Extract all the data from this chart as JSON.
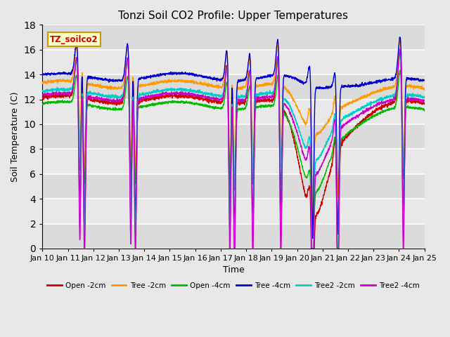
{
  "title": "Tonzi Soil CO2 Profile: Upper Temperatures",
  "xlabel": "Time",
  "ylabel": "Soil Temperature (C)",
  "ylim": [
    0,
    18
  ],
  "xlim": [
    0,
    15
  ],
  "x_tick_labels": [
    "Jan 10",
    "Jan 11",
    "Jan 12",
    "Jan 13",
    "Jan 14",
    "Jan 15",
    "Jan 16",
    "Jan 17",
    "Jan 18",
    "Jan 19",
    "Jan 20",
    "Jan 21",
    "Jan 22",
    "Jan 23",
    "Jan 24",
    "Jan 25"
  ],
  "series": {
    "Open -2cm": {
      "color": "#cc0000"
    },
    "Tree -2cm": {
      "color": "#ff9900"
    },
    "Open -4cm": {
      "color": "#00bb00"
    },
    "Tree -4cm": {
      "color": "#0000cc"
    },
    "Tree2 -2cm": {
      "color": "#00cccc"
    },
    "Tree2 -4cm": {
      "color": "#cc00cc"
    }
  },
  "legend_box": {
    "text": "TZ_soilco2",
    "facecolor": "#ffffcc",
    "edgecolor": "#cc9900"
  },
  "bg_color": "#e8e8e8",
  "grid_color": "#ffffff",
  "title_fontsize": 11,
  "axis_label_fontsize": 9,
  "tick_fontsize": 8
}
